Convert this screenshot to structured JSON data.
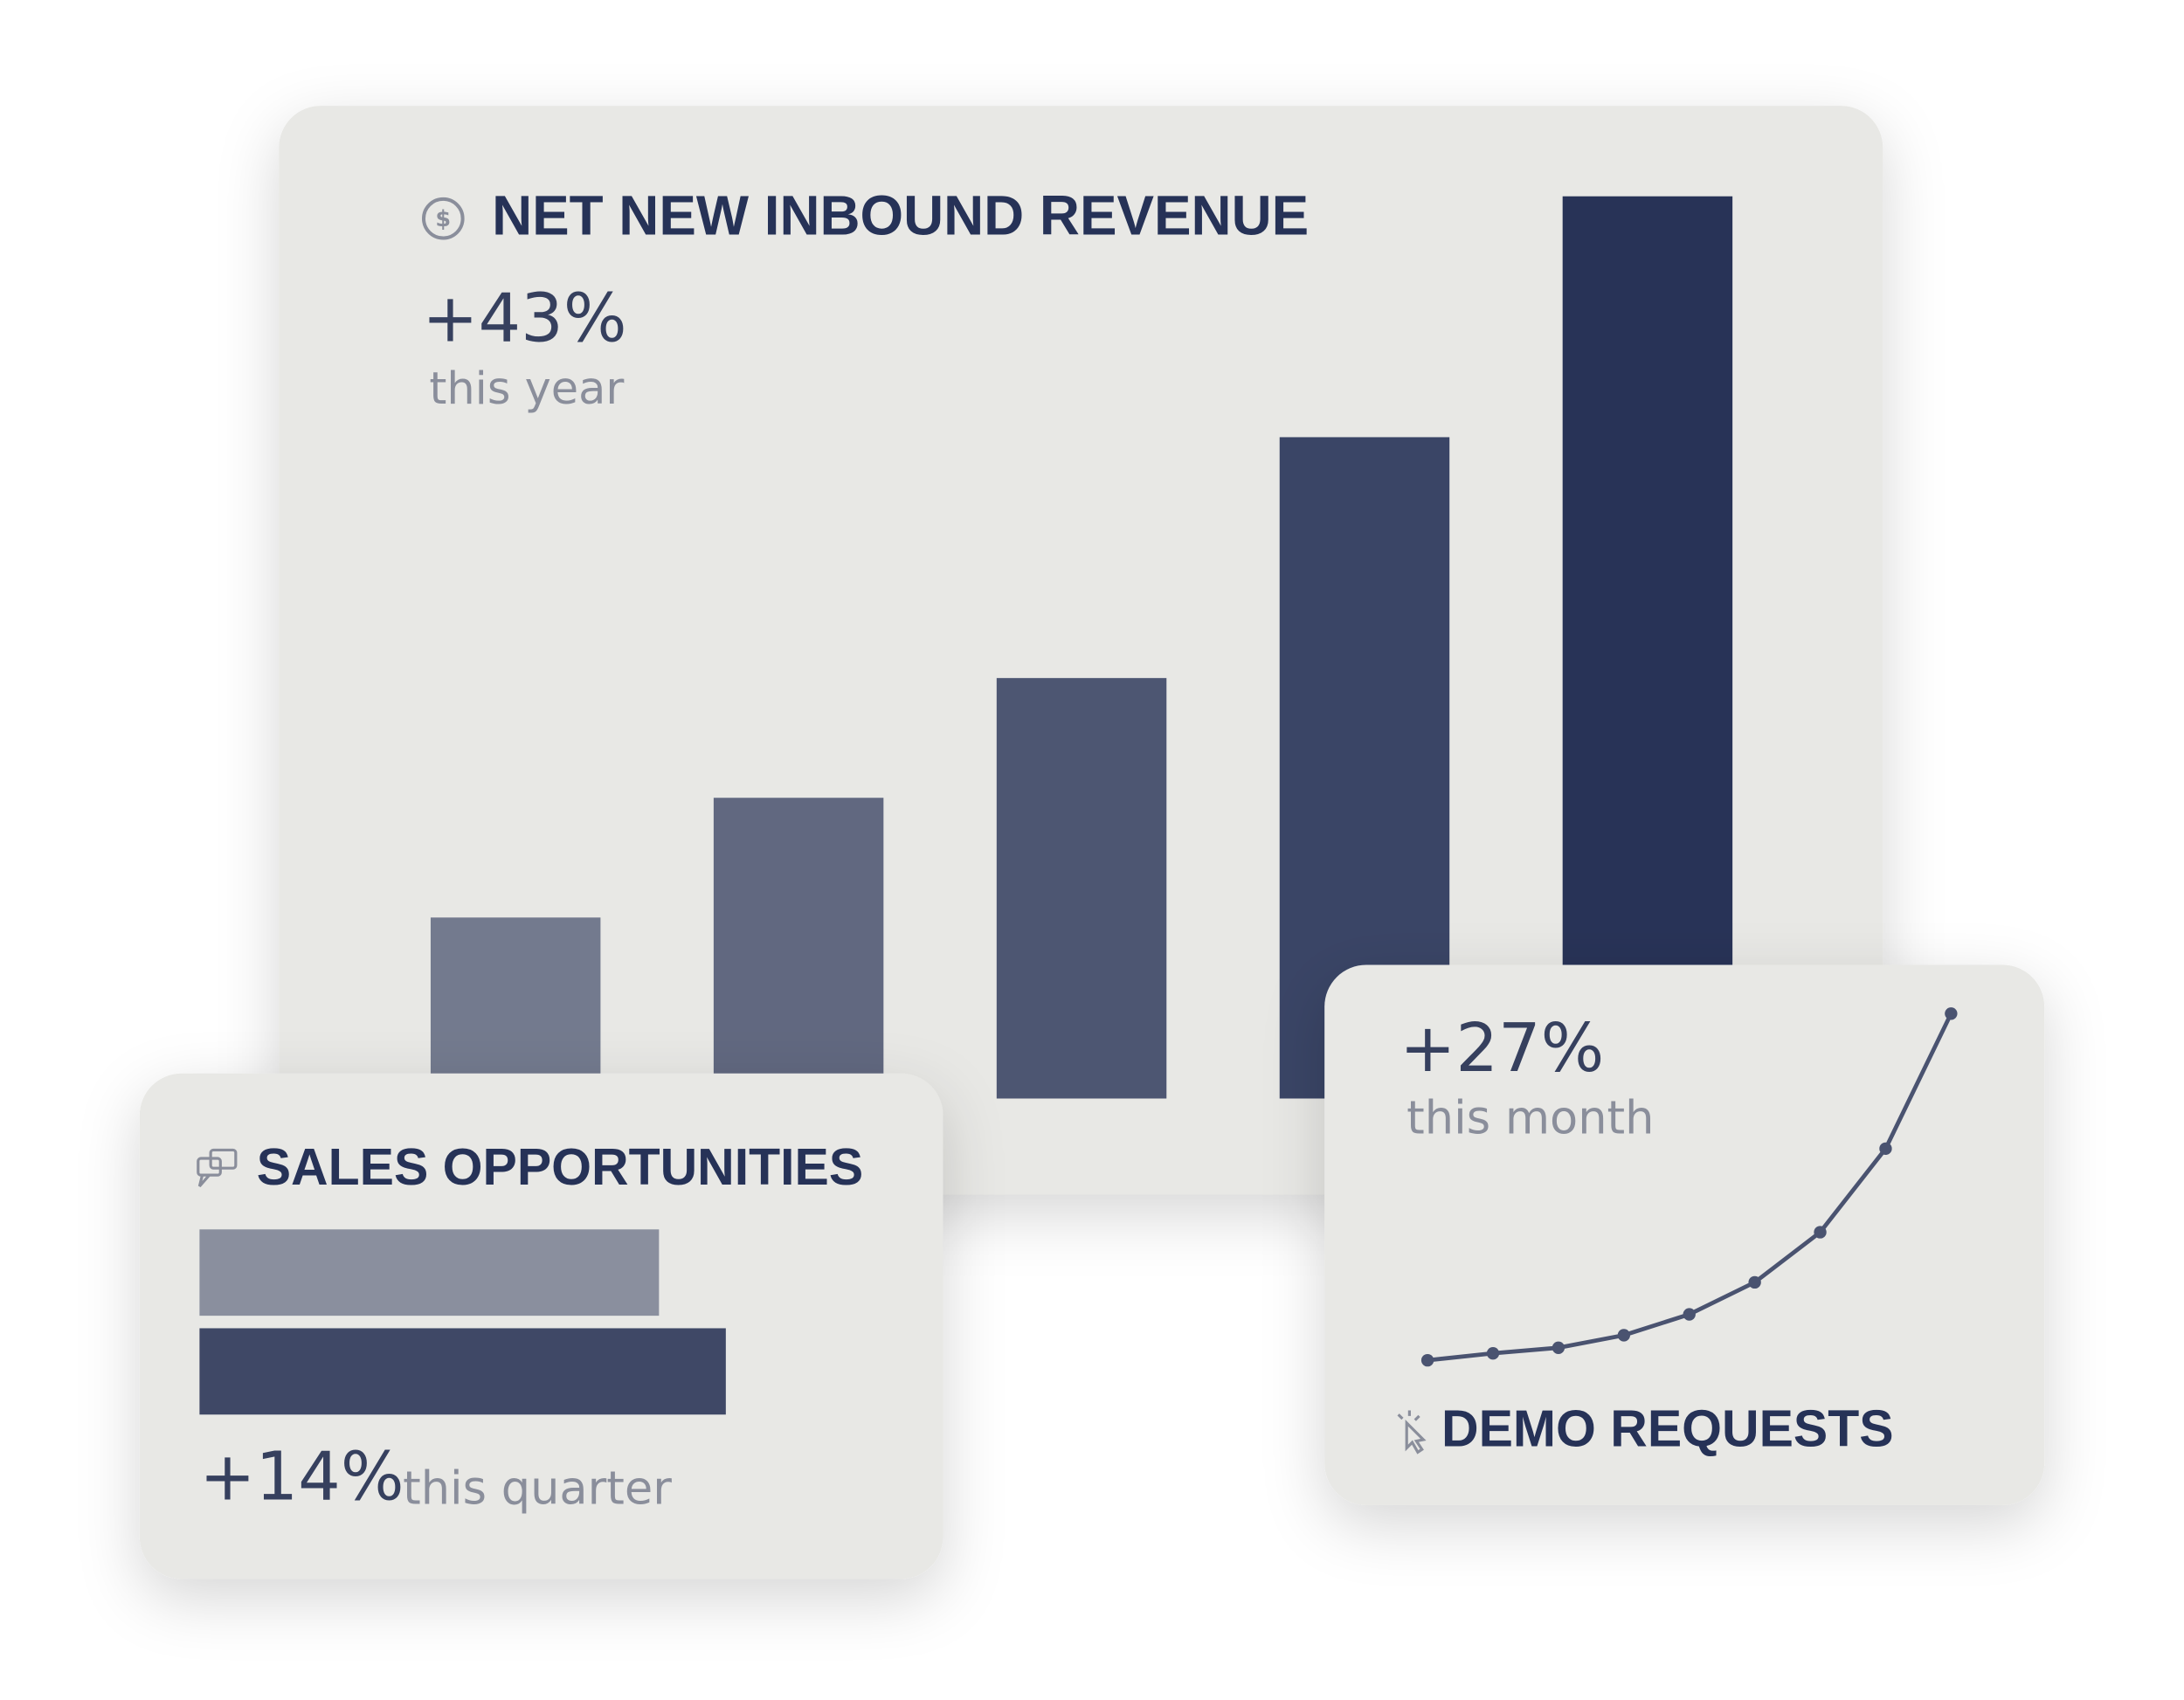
{
  "chart_data": [
    {
      "type": "bar",
      "title": "NET NEW INBOUND REVENUE",
      "annotation": "+43%",
      "note": "this year",
      "values": [
        130,
        216,
        302,
        475,
        648
      ],
      "colors": [
        "#737a8e",
        "#616880",
        "#4d5672",
        "#3a4566",
        "#283357"
      ]
    },
    {
      "type": "barh",
      "title": "SALES OPPORTUNITIES",
      "annotation": "+14%",
      "note": "this quarter",
      "values": [
        330,
        378
      ],
      "colors": [
        "#8a8f9e",
        "#3f4866"
      ]
    },
    {
      "type": "line",
      "title": "DEMO REQUESTS",
      "annotation": "+27%",
      "note": "this month",
      "values": [
        23,
        28,
        32,
        41,
        56,
        79,
        115,
        175,
        272
      ],
      "color": "#4a5370"
    }
  ]
}
